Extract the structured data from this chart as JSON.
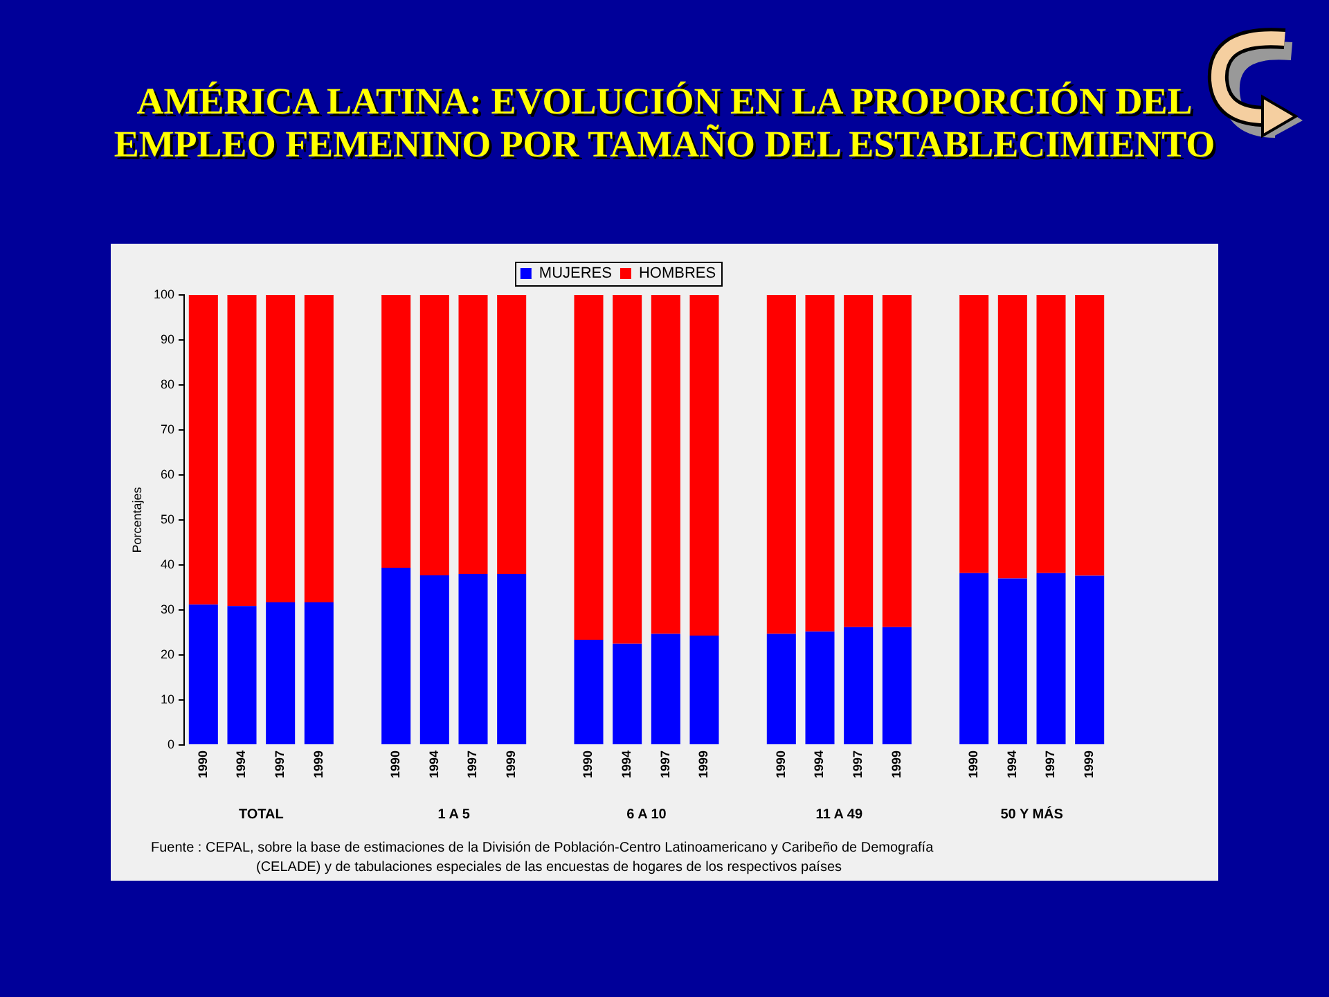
{
  "chart_data": {
    "type": "bar",
    "title": "AMÉRICA LATINA: EVOLUCIÓN EN LA PROPORCIÓN DEL EMPLEO FEMENINO POR TAMAÑO DEL ESTABLECIMIENTO",
    "ylabel": "Porcentajes",
    "categories": [
      "1990",
      "1994",
      "1997",
      "1999",
      null,
      "1990",
      "1994",
      "1997",
      "1999",
      null,
      "1990",
      "1994",
      "1997",
      "1999",
      null,
      "1990",
      "1994",
      "1997",
      "1999",
      null,
      "1990",
      "1994",
      "1997",
      "1999"
    ],
    "series": [
      {
        "name": "MUJERES",
        "color": "#0000ff",
        "values": [
          31.2,
          30.9,
          31.7,
          31.7,
          null,
          39.4,
          37.7,
          38.0,
          38.0,
          null,
          23.4,
          22.5,
          24.7,
          24.3,
          null,
          24.7,
          25.2,
          26.2,
          26.2,
          null,
          38.2,
          37.0,
          38.2,
          37.6
        ]
      },
      {
        "name": "HOMBRES",
        "color": "#ff0000",
        "values": [
          68.8,
          69.1,
          68.3,
          68.3,
          null,
          60.6,
          62.3,
          62.0,
          62.0,
          null,
          76.6,
          77.5,
          75.3,
          75.7,
          null,
          75.3,
          74.8,
          73.8,
          73.8,
          null,
          61.8,
          63.0,
          61.8,
          62.4
        ]
      }
    ],
    "stacked": true,
    "ylim": [
      0,
      100
    ],
    "yticks": [
      0,
      10,
      20,
      30,
      40,
      50,
      60,
      70,
      80,
      90,
      100
    ],
    "grid": false,
    "legend": "top",
    "annotations": [
      "TOTAL",
      "1 A 5",
      "6 A 10",
      "11 A 49",
      "50 Y MÁS",
      "Fuente : CEPAL, sobre la base de estimaciones de la División de Población-Centro Latinoamericano y Caribeño de Demografía (CELADE) y de tabulaciones especiales de las encuestas de hogares de los respectivos países"
    ]
  }
}
